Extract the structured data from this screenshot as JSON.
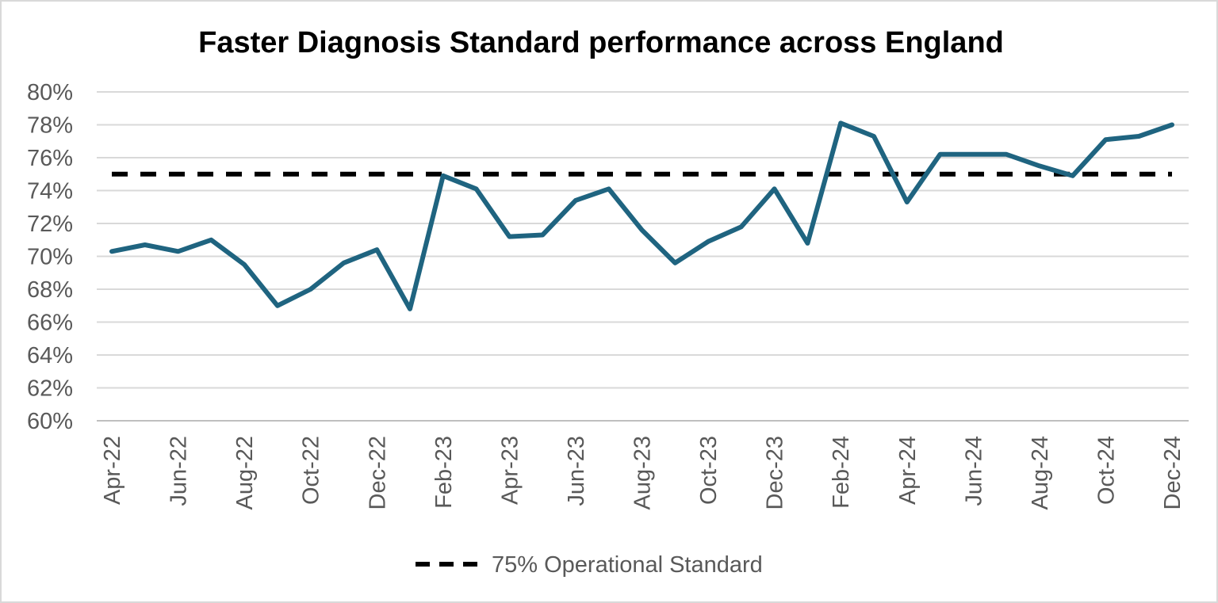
{
  "chart_data": {
    "type": "line",
    "title": "Faster Diagnosis Standard performance across England",
    "xlabel": "",
    "ylabel": "",
    "ylim": [
      60,
      80
    ],
    "y_ticks": [
      "60%",
      "62%",
      "64%",
      "66%",
      "68%",
      "70%",
      "72%",
      "74%",
      "76%",
      "78%",
      "80%"
    ],
    "x": [
      "Apr-22",
      "May-22",
      "Jun-22",
      "Jul-22",
      "Aug-22",
      "Sep-22",
      "Oct-22",
      "Nov-22",
      "Dec-22",
      "Jan-23",
      "Feb-23",
      "Mar-23",
      "Apr-23",
      "May-23",
      "Jun-23",
      "Jul-23",
      "Aug-23",
      "Sep-23",
      "Oct-23",
      "Nov-23",
      "Dec-23",
      "Jan-24",
      "Feb-24",
      "Mar-24",
      "Apr-24",
      "May-24",
      "Jun-24",
      "Jul-24",
      "Aug-24",
      "Sep-24",
      "Oct-24",
      "Nov-24",
      "Dec-24"
    ],
    "x_tick_labels": [
      "Apr-22",
      "Jun-22",
      "Aug-22",
      "Oct-22",
      "Dec-22",
      "Feb-23",
      "Apr-23",
      "Jun-23",
      "Aug-23",
      "Oct-23",
      "Dec-23",
      "Feb-24",
      "Apr-24",
      "Jun-24",
      "Aug-24",
      "Oct-24",
      "Dec-24"
    ],
    "grid": true,
    "legend_position": "bottom",
    "series": [
      {
        "values": [
          70.3,
          70.7,
          70.3,
          71.0,
          69.5,
          67.0,
          68.0,
          69.6,
          70.4,
          66.8,
          74.9,
          74.1,
          71.2,
          71.3,
          73.4,
          74.1,
          71.6,
          69.6,
          70.9,
          71.8,
          74.1,
          70.8,
          78.1,
          77.3,
          73.3,
          76.2,
          76.2,
          76.2,
          75.5,
          74.9,
          77.1,
          77.3,
          78.0
        ],
        "color": "#1f6480",
        "style": "solid"
      },
      {
        "name": "75% Operational Standard",
        "values": [
          75,
          75,
          75,
          75,
          75,
          75,
          75,
          75,
          75,
          75,
          75,
          75,
          75,
          75,
          75,
          75,
          75,
          75,
          75,
          75,
          75,
          75,
          75,
          75,
          75,
          75,
          75,
          75,
          75,
          75,
          75,
          75,
          75
        ],
        "color": "#000000",
        "style": "dashed"
      }
    ]
  }
}
